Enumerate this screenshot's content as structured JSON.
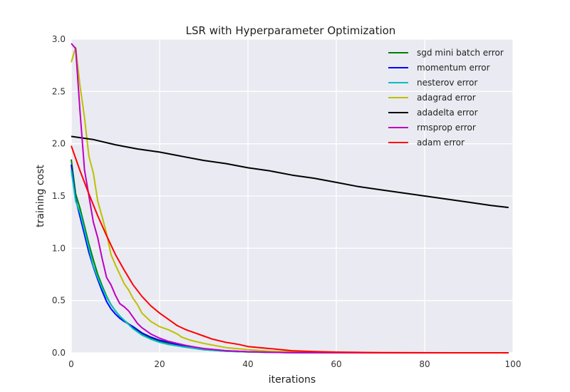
{
  "chart_data": {
    "type": "line",
    "title": "LSR with Hyperparameter Optimization",
    "xlabel": "iterations",
    "ylabel": "training cost",
    "xlim": [
      0,
      100
    ],
    "ylim": [
      0.0,
      3.0
    ],
    "x_ticks": [
      "0",
      "20",
      "40",
      "60",
      "80",
      "100"
    ],
    "y_ticks": [
      "0.0",
      "0.5",
      "1.0",
      "1.5",
      "2.0",
      "2.5",
      "3.0"
    ],
    "grid": true,
    "legend_position": "top-right",
    "series": [
      {
        "name": "sgd mini batch error",
        "color": "#008000",
        "x": [
          0,
          1,
          2,
          3,
          4,
          5,
          6,
          7,
          8,
          9,
          10,
          11,
          12,
          14,
          16,
          18,
          20,
          22,
          25,
          30,
          35,
          40,
          45,
          50,
          60,
          70,
          80,
          90,
          99
        ],
        "y": [
          1.85,
          1.52,
          1.38,
          1.21,
          1.04,
          0.89,
          0.75,
          0.64,
          0.54,
          0.46,
          0.4,
          0.35,
          0.31,
          0.24,
          0.18,
          0.14,
          0.11,
          0.09,
          0.06,
          0.03,
          0.015,
          0.008,
          0.004,
          0.002,
          0.001,
          0.0,
          0.0,
          0.0,
          0.0
        ]
      },
      {
        "name": "momentum error",
        "color": "#0000ff",
        "x": [
          0,
          1,
          2,
          3,
          4,
          5,
          6,
          7,
          8,
          9,
          10,
          11,
          12,
          14,
          16,
          18,
          20,
          22,
          25,
          30,
          35,
          40,
          45,
          50,
          60,
          70,
          80,
          90,
          99
        ],
        "y": [
          1.8,
          1.47,
          1.3,
          1.13,
          0.96,
          0.82,
          0.7,
          0.59,
          0.49,
          0.42,
          0.37,
          0.33,
          0.3,
          0.25,
          0.19,
          0.15,
          0.12,
          0.1,
          0.07,
          0.04,
          0.02,
          0.01,
          0.005,
          0.003,
          0.001,
          0.0,
          0.0,
          0.0,
          0.0
        ]
      },
      {
        "name": "nesterov error",
        "color": "#00bfbf",
        "x": [
          0,
          1,
          2,
          3,
          4,
          5,
          6,
          7,
          8,
          9,
          10,
          11,
          12,
          14,
          16,
          18,
          20,
          22,
          25,
          30,
          35,
          40,
          45,
          50,
          60,
          70,
          80,
          90,
          99
        ],
        "y": [
          1.75,
          1.45,
          1.34,
          1.17,
          1.0,
          0.83,
          0.72,
          0.62,
          0.53,
          0.46,
          0.4,
          0.35,
          0.31,
          0.23,
          0.17,
          0.13,
          0.1,
          0.08,
          0.06,
          0.03,
          0.015,
          0.008,
          0.004,
          0.002,
          0.001,
          0.0,
          0.0,
          0.0,
          0.0
        ]
      },
      {
        "name": "adagrad error",
        "color": "#bfbf00",
        "x": [
          0,
          1,
          2,
          3,
          4,
          5,
          6,
          7,
          8,
          9,
          10,
          11,
          12,
          13,
          14,
          15,
          16,
          17,
          18,
          20,
          22,
          24,
          25,
          27,
          30,
          35,
          40,
          45,
          50,
          60,
          70,
          80,
          90,
          99
        ],
        "y": [
          2.78,
          2.92,
          2.55,
          2.25,
          1.88,
          1.72,
          1.45,
          1.3,
          1.14,
          0.94,
          0.84,
          0.75,
          0.66,
          0.6,
          0.52,
          0.46,
          0.38,
          0.34,
          0.3,
          0.25,
          0.22,
          0.18,
          0.15,
          0.12,
          0.09,
          0.05,
          0.03,
          0.015,
          0.008,
          0.003,
          0.001,
          0.0,
          0.0,
          0.0
        ]
      },
      {
        "name": "adadelta error",
        "color": "#000000",
        "x": [
          0,
          5,
          10,
          15,
          20,
          25,
          30,
          35,
          40,
          45,
          50,
          55,
          60,
          65,
          70,
          75,
          80,
          85,
          90,
          95,
          99
        ],
        "y": [
          2.07,
          2.04,
          1.99,
          1.95,
          1.92,
          1.88,
          1.84,
          1.81,
          1.77,
          1.74,
          1.7,
          1.67,
          1.63,
          1.59,
          1.56,
          1.53,
          1.5,
          1.47,
          1.44,
          1.41,
          1.39
        ]
      },
      {
        "name": "rmsprop error",
        "color": "#bf00bf",
        "x": [
          0,
          1,
          2,
          3,
          4,
          5,
          6,
          7,
          8,
          9,
          10,
          11,
          12,
          13,
          14,
          15,
          16,
          17,
          18,
          20,
          22,
          24,
          26,
          30,
          35,
          40,
          45,
          50,
          60,
          70,
          80,
          90,
          99
        ],
        "y": [
          2.96,
          2.91,
          2.3,
          1.75,
          1.5,
          1.25,
          1.1,
          0.9,
          0.72,
          0.65,
          0.55,
          0.47,
          0.44,
          0.4,
          0.34,
          0.28,
          0.24,
          0.21,
          0.18,
          0.14,
          0.11,
          0.09,
          0.07,
          0.04,
          0.02,
          0.01,
          0.005,
          0.002,
          0.001,
          0.0,
          0.0,
          0.0,
          0.0
        ]
      },
      {
        "name": "adam error",
        "color": "#ff0000",
        "x": [
          0,
          2,
          4,
          6,
          8,
          10,
          12,
          14,
          16,
          18,
          20,
          22,
          24,
          26,
          28,
          30,
          32,
          35,
          38,
          40,
          45,
          50,
          55,
          60,
          65,
          70,
          80,
          90,
          99
        ],
        "y": [
          1.98,
          1.74,
          1.52,
          1.31,
          1.12,
          0.94,
          0.79,
          0.65,
          0.54,
          0.45,
          0.38,
          0.32,
          0.26,
          0.22,
          0.19,
          0.16,
          0.13,
          0.1,
          0.08,
          0.06,
          0.04,
          0.02,
          0.012,
          0.007,
          0.004,
          0.002,
          0.001,
          0.0,
          0.0
        ]
      }
    ]
  }
}
